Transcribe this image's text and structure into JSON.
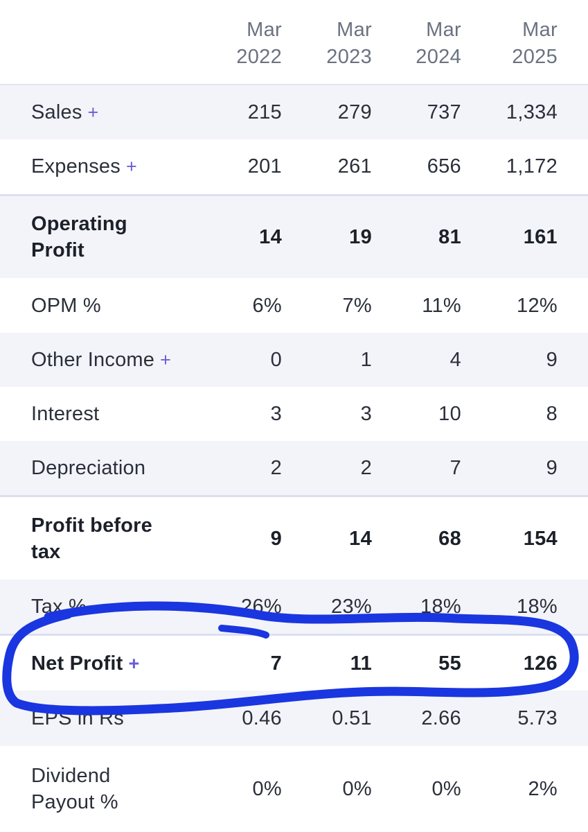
{
  "header": {
    "years": [
      {
        "line1": "Mar",
        "line2": "2022"
      },
      {
        "line1": "Mar",
        "line2": "2023"
      },
      {
        "line1": "Mar",
        "line2": "2024"
      },
      {
        "line1": "Mar",
        "line2": "2025"
      }
    ]
  },
  "rows": [
    {
      "label": "Sales",
      "plus": "+",
      "values": [
        "215",
        "279",
        "737",
        "1,334"
      ]
    },
    {
      "label": "Expenses",
      "plus": "+",
      "values": [
        "201",
        "261",
        "656",
        "1,172"
      ]
    },
    {
      "label": "Operating\nProfit",
      "values": [
        "14",
        "19",
        "81",
        "161"
      ]
    },
    {
      "label": "OPM %",
      "values": [
        "6%",
        "7%",
        "11%",
        "12%"
      ]
    },
    {
      "label": "Other Income",
      "plus": "+",
      "values": [
        "0",
        "1",
        "4",
        "9"
      ]
    },
    {
      "label": "Interest",
      "values": [
        "3",
        "3",
        "10",
        "8"
      ]
    },
    {
      "label": "Depreciation",
      "values": [
        "2",
        "2",
        "7",
        "9"
      ]
    },
    {
      "label": "Profit before\ntax",
      "values": [
        "9",
        "14",
        "68",
        "154"
      ]
    },
    {
      "label": "Tax %",
      "values": [
        "26%",
        "23%",
        "18%",
        "18%"
      ]
    },
    {
      "label": "Net Profit",
      "plus": "+",
      "values": [
        "7",
        "11",
        "55",
        "126"
      ]
    },
    {
      "label": "EPS in Rs",
      "values": [
        "0.46",
        "0.51",
        "2.66",
        "5.73"
      ]
    },
    {
      "label": "Dividend\nPayout %",
      "values": [
        "0%",
        "0%",
        "0%",
        "2%"
      ]
    }
  ],
  "colors": {
    "accent_plus": "#6a5ed6",
    "annotation_stroke": "#1a36e0",
    "row_shade": "#f3f4f9"
  }
}
